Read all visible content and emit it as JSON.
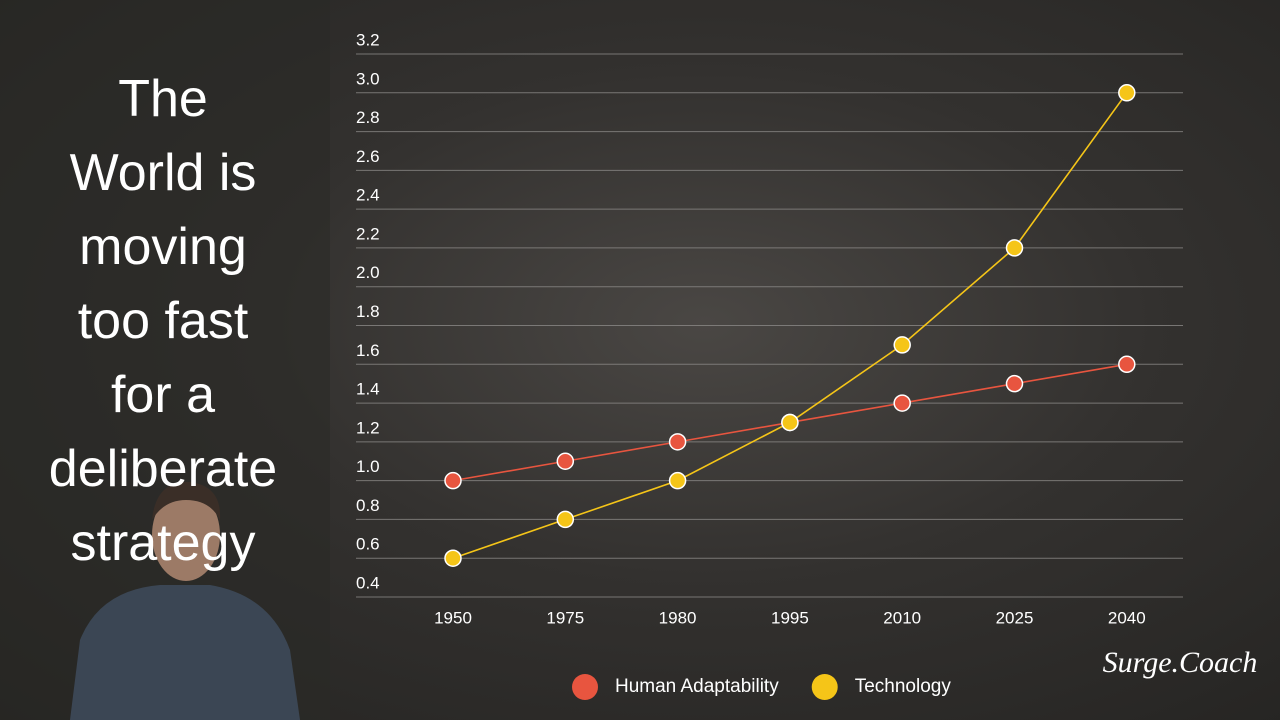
{
  "chart_data": {
    "type": "line",
    "title_lines": [
      "The",
      "World is",
      "moving",
      "too fast",
      "for a",
      "deliberate",
      "strategy"
    ],
    "categories": [
      "1950",
      "1975",
      "1980",
      "1995",
      "2010",
      "2025",
      "2040"
    ],
    "series": [
      {
        "name": "Human Adaptability",
        "color": "#e8553f",
        "values": [
          1.0,
          1.1,
          1.2,
          1.3,
          1.4,
          1.5,
          1.6
        ]
      },
      {
        "name": "Technology",
        "color": "#f5c518",
        "values": [
          0.6,
          0.8,
          1.0,
          1.3,
          1.7,
          2.2,
          3.0
        ]
      }
    ],
    "ylim": [
      0.4,
      3.2
    ],
    "yticks": [
      {
        "value": 0.4,
        "label": "0.4"
      },
      {
        "value": 0.6,
        "label": "0.6"
      },
      {
        "value": 0.8,
        "label": "0.8"
      },
      {
        "value": 1.0,
        "label": "1.0"
      },
      {
        "value": 1.2,
        "label": "1.2"
      },
      {
        "value": 1.4,
        "label": "1.4"
      },
      {
        "value": 1.6,
        "label": "1.6"
      },
      {
        "value": 1.8,
        "label": "1.8"
      },
      {
        "value": 2.0,
        "label": "2.0"
      },
      {
        "value": 2.2,
        "label": "2.2"
      },
      {
        "value": 2.4,
        "label": "2.4"
      },
      {
        "value": 2.6,
        "label": "2.6"
      },
      {
        "value": 2.8,
        "label": "2.8"
      },
      {
        "value": 3.0,
        "label": "3.0"
      },
      {
        "value": 3.2,
        "label": "3.2"
      }
    ],
    "grid": true,
    "legend": "bottom",
    "logo": "Surge.Coach"
  }
}
